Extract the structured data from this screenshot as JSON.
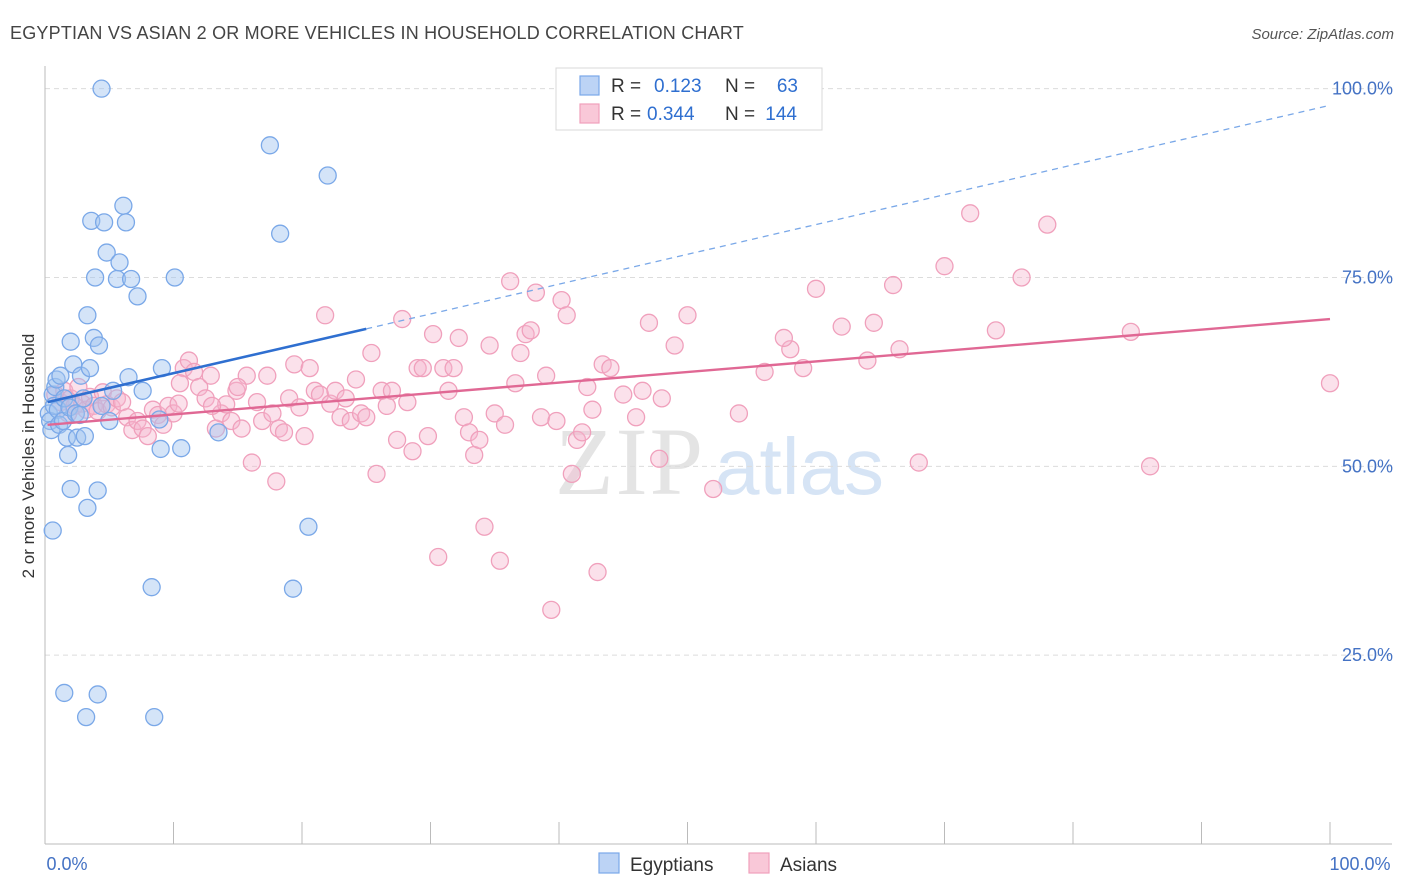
{
  "chart_data": {
    "type": "scatter",
    "title": "EGYPTIAN VS ASIAN 2 OR MORE VEHICLES IN HOUSEHOLD CORRELATION CHART",
    "source": "Source: ZipAtlas.com",
    "ylabel": "2 or more Vehicles in Household",
    "xlabel": "",
    "xlim": [
      0,
      100
    ],
    "ylim": [
      0,
      103
    ],
    "x_tick_labels": [
      "0.0%",
      "100.0%"
    ],
    "y_ticks": [
      25,
      50,
      75,
      100
    ],
    "y_tick_labels": [
      "25.0%",
      "50.0%",
      "75.0%",
      "100.0%"
    ],
    "grid": true,
    "legend_position": "top-center",
    "watermark": "ZIPatlas",
    "series": [
      {
        "name": "Egyptians",
        "color": "#7aa8e8",
        "line_color": "#2f6fd0",
        "r_label": "R =",
        "r_value": "0.123",
        "n_label": "N =",
        "n_value": "63",
        "trend": {
          "x0": 0.2,
          "y0": 58.5,
          "x1": 25,
          "y1": 68.2,
          "x_dash_end": 100,
          "y_dash_end": 97.8
        },
        "points": [
          [
            0.3,
            57.0
          ],
          [
            0.4,
            56.0
          ],
          [
            0.5,
            54.8
          ],
          [
            0.6,
            59.5
          ],
          [
            0.7,
            58.0
          ],
          [
            0.8,
            60.5
          ],
          [
            0.9,
            61.5
          ],
          [
            1.0,
            57.5
          ],
          [
            1.1,
            55.5
          ],
          [
            1.2,
            62.0
          ],
          [
            1.4,
            56.0
          ],
          [
            1.5,
            59.0
          ],
          [
            1.7,
            53.8
          ],
          [
            1.8,
            51.5
          ],
          [
            1.9,
            57.8
          ],
          [
            2.0,
            66.5
          ],
          [
            2.2,
            63.5
          ],
          [
            2.4,
            57.0
          ],
          [
            2.5,
            53.8
          ],
          [
            2.7,
            56.8
          ],
          [
            2.8,
            62.0
          ],
          [
            3.0,
            59.0
          ],
          [
            3.1,
            54.0
          ],
          [
            3.3,
            70.0
          ],
          [
            3.5,
            63.0
          ],
          [
            3.6,
            82.5
          ],
          [
            3.8,
            67.0
          ],
          [
            3.9,
            75.0
          ],
          [
            4.2,
            66.0
          ],
          [
            4.4,
            58.0
          ],
          [
            4.6,
            82.3
          ],
          [
            4.8,
            78.3
          ],
          [
            5.0,
            56.0
          ],
          [
            5.3,
            60.0
          ],
          [
            5.6,
            74.8
          ],
          [
            5.8,
            77.0
          ],
          [
            6.1,
            84.5
          ],
          [
            6.3,
            82.3
          ],
          [
            6.5,
            61.8
          ],
          [
            6.7,
            74.8
          ],
          [
            7.2,
            72.5
          ],
          [
            7.6,
            60.0
          ],
          [
            8.3,
            34.0
          ],
          [
            8.9,
            56.2
          ],
          [
            9.0,
            52.3
          ],
          [
            9.1,
            63.0
          ],
          [
            10.1,
            75.0
          ],
          [
            10.6,
            52.4
          ],
          [
            13.5,
            54.5
          ],
          [
            17.5,
            92.5
          ],
          [
            18.3,
            80.8
          ],
          [
            19.3,
            33.8
          ],
          [
            20.5,
            42.0
          ],
          [
            22.0,
            88.5
          ],
          [
            1.5,
            20.0
          ],
          [
            3.2,
            16.8
          ],
          [
            8.5,
            16.8
          ],
          [
            4.1,
            19.8
          ],
          [
            0.6,
            41.5
          ],
          [
            2.0,
            47.0
          ],
          [
            3.3,
            44.5
          ],
          [
            4.1,
            46.8
          ],
          [
            4.4,
            100.0
          ]
        ]
      },
      {
        "name": "Asians",
        "color": "#f0a0bc",
        "line_color": "#e06894",
        "r_label": "R =",
        "r_value": "0.344",
        "n_label": "N =",
        "n_value": "144",
        "trend": {
          "x0": 0.2,
          "y0": 55.5,
          "x1": 100,
          "y1": 69.5
        },
        "points": [
          [
            0.8,
            59.5
          ],
          [
            1.2,
            58.5
          ],
          [
            1.5,
            60.0
          ],
          [
            1.8,
            57.0
          ],
          [
            2.0,
            59.0
          ],
          [
            2.3,
            58.0
          ],
          [
            2.6,
            60.5
          ],
          [
            2.9,
            58.3
          ],
          [
            3.2,
            57.5
          ],
          [
            3.5,
            59.2
          ],
          [
            3.8,
            58.0
          ],
          [
            4.1,
            57.3
          ],
          [
            4.5,
            59.8
          ],
          [
            4.8,
            58.2
          ],
          [
            5.2,
            57.8
          ],
          [
            5.6,
            59.0
          ],
          [
            6.0,
            58.5
          ],
          [
            6.4,
            56.5
          ],
          [
            6.8,
            54.8
          ],
          [
            7.2,
            56.0
          ],
          [
            7.6,
            55.0
          ],
          [
            8.0,
            54.0
          ],
          [
            8.4,
            57.5
          ],
          [
            8.8,
            56.8
          ],
          [
            9.2,
            55.5
          ],
          [
            9.6,
            58.0
          ],
          [
            10.0,
            57.0
          ],
          [
            10.4,
            58.3
          ],
          [
            10.8,
            63.0
          ],
          [
            11.2,
            64.0
          ],
          [
            11.6,
            62.5
          ],
          [
            12.0,
            60.5
          ],
          [
            12.5,
            59.0
          ],
          [
            12.9,
            62.0
          ],
          [
            13.3,
            55.0
          ],
          [
            13.7,
            57.0
          ],
          [
            14.1,
            58.2
          ],
          [
            14.5,
            56.0
          ],
          [
            14.9,
            60.0
          ],
          [
            15.3,
            55.0
          ],
          [
            15.7,
            62.0
          ],
          [
            16.1,
            50.5
          ],
          [
            16.5,
            58.5
          ],
          [
            16.9,
            56.0
          ],
          [
            17.3,
            62.0
          ],
          [
            17.7,
            57.0
          ],
          [
            18.2,
            55.0
          ],
          [
            18.6,
            54.5
          ],
          [
            19.0,
            59.0
          ],
          [
            19.4,
            63.5
          ],
          [
            19.8,
            57.8
          ],
          [
            20.2,
            54.0
          ],
          [
            20.6,
            63.0
          ],
          [
            21.0,
            60.0
          ],
          [
            21.4,
            59.5
          ],
          [
            21.8,
            70.0
          ],
          [
            22.2,
            58.3
          ],
          [
            22.6,
            60.0
          ],
          [
            23.0,
            56.5
          ],
          [
            23.4,
            59.0
          ],
          [
            23.8,
            56.0
          ],
          [
            24.2,
            61.5
          ],
          [
            24.6,
            57.0
          ],
          [
            25.0,
            56.5
          ],
          [
            25.4,
            65.0
          ],
          [
            25.8,
            49.0
          ],
          [
            26.2,
            60.0
          ],
          [
            26.6,
            58.0
          ],
          [
            27.0,
            60.0
          ],
          [
            27.4,
            53.5
          ],
          [
            27.8,
            69.5
          ],
          [
            28.2,
            58.5
          ],
          [
            28.6,
            52.0
          ],
          [
            29.0,
            63.0
          ],
          [
            29.4,
            63.0
          ],
          [
            29.8,
            54.0
          ],
          [
            30.2,
            67.5
          ],
          [
            30.6,
            38.0
          ],
          [
            31.0,
            63.0
          ],
          [
            31.4,
            60.0
          ],
          [
            31.8,
            63.0
          ],
          [
            32.2,
            67.0
          ],
          [
            32.6,
            56.5
          ],
          [
            33.0,
            54.5
          ],
          [
            33.4,
            51.5
          ],
          [
            33.8,
            53.5
          ],
          [
            34.2,
            42.0
          ],
          [
            34.6,
            66.0
          ],
          [
            35.0,
            57.0
          ],
          [
            35.4,
            37.5
          ],
          [
            35.8,
            55.5
          ],
          [
            36.2,
            74.5
          ],
          [
            36.6,
            61.0
          ],
          [
            37.0,
            65.0
          ],
          [
            37.4,
            67.5
          ],
          [
            37.8,
            68.0
          ],
          [
            38.2,
            73.0
          ],
          [
            38.6,
            56.5
          ],
          [
            39.0,
            62.0
          ],
          [
            39.4,
            31.0
          ],
          [
            39.8,
            56.0
          ],
          [
            40.2,
            72.0
          ],
          [
            40.6,
            70.0
          ],
          [
            41.0,
            49.0
          ],
          [
            41.4,
            53.5
          ],
          [
            41.8,
            54.5
          ],
          [
            42.2,
            60.5
          ],
          [
            42.6,
            57.5
          ],
          [
            43.0,
            36.0
          ],
          [
            43.4,
            63.5
          ],
          [
            44.0,
            63.0
          ],
          [
            45.0,
            59.5
          ],
          [
            46.0,
            56.5
          ],
          [
            47.0,
            69.0
          ],
          [
            48.0,
            59.0
          ],
          [
            49.0,
            66.0
          ],
          [
            50.0,
            70.0
          ],
          [
            52.0,
            47.0
          ],
          [
            54.0,
            57.0
          ],
          [
            56.0,
            62.5
          ],
          [
            58.0,
            65.5
          ],
          [
            60.0,
            73.5
          ],
          [
            62.0,
            68.5
          ],
          [
            64.0,
            64.0
          ],
          [
            66.0,
            74.0
          ],
          [
            68.0,
            50.5
          ],
          [
            70.0,
            76.5
          ],
          [
            72.0,
            83.5
          ],
          [
            74.0,
            68.0
          ],
          [
            76.0,
            75.0
          ],
          [
            78.0,
            82.0
          ],
          [
            84.5,
            67.8
          ],
          [
            86.0,
            50.0
          ],
          [
            100.0,
            61.0
          ],
          [
            10.5,
            61.0
          ],
          [
            13.0,
            58.0
          ],
          [
            15.0,
            60.5
          ],
          [
            18.0,
            48.0
          ],
          [
            46.5,
            60.0
          ],
          [
            47.8,
            51.0
          ],
          [
            57.5,
            67.0
          ],
          [
            59.0,
            63.0
          ],
          [
            64.5,
            69.0
          ],
          [
            66.5,
            65.5
          ]
        ]
      }
    ]
  },
  "legend": {
    "bottom": [
      {
        "name": "Egyptians",
        "color": "#7aa8e8"
      },
      {
        "name": "Asians",
        "color": "#f0a0bc"
      }
    ]
  }
}
